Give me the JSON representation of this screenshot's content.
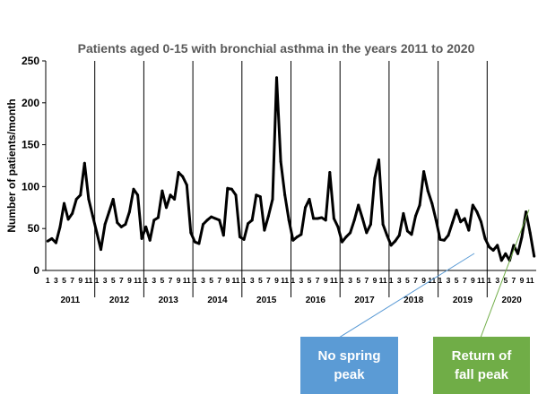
{
  "colors": {
    "line": "#000000",
    "spring_callout": "#5b9bd5",
    "fall_callout": "#70ad47",
    "spring_arrow": "#5b9bd5",
    "fall_arrow": "#70ad47"
  },
  "chart_data": {
    "type": "line",
    "title": "Patients aged 0-15 with bronchial asthma in the years 2011 to 2020",
    "xlabel": "",
    "ylabel": "Number of patients/month",
    "ylim": [
      0,
      250
    ],
    "yticks": [
      0,
      50,
      100,
      150,
      200,
      250
    ],
    "grid": false,
    "x_month_ticks": [
      "1",
      "3",
      "5",
      "7",
      "9",
      "11"
    ],
    "years": [
      "2011",
      "2012",
      "2013",
      "2014",
      "2015",
      "2016",
      "2017",
      "2018",
      "2019",
      "2020"
    ],
    "series": [
      {
        "values": [
          35,
          38,
          33,
          52,
          80,
          61,
          68,
          85,
          90,
          128,
          85,
          65,
          45,
          25,
          55,
          70,
          85,
          57,
          52,
          55,
          70,
          97,
          90,
          38,
          52,
          36,
          60,
          63,
          95,
          75,
          90,
          85,
          117,
          112,
          102,
          45,
          34,
          32,
          55,
          60,
          64,
          62,
          60,
          42,
          98,
          97,
          90,
          40,
          37,
          56,
          60,
          90,
          88,
          48,
          65,
          85,
          230,
          130,
          90,
          60,
          36,
          40,
          43,
          75,
          85,
          62,
          62,
          63,
          60,
          117,
          62,
          52,
          34,
          40,
          45,
          60,
          78,
          62,
          45,
          55,
          110,
          132,
          55,
          42,
          30,
          35,
          42,
          68,
          47,
          43,
          65,
          78,
          118,
          95,
          80,
          60,
          37,
          36,
          42,
          57,
          72,
          58,
          62,
          48,
          78,
          70,
          58,
          38,
          28,
          24,
          30,
          12,
          20,
          12,
          30,
          20,
          40,
          70,
          45,
          17
        ]
      }
    ]
  },
  "callouts": {
    "spring": "No spring\npeak",
    "fall": "Return of\nfall peak"
  }
}
